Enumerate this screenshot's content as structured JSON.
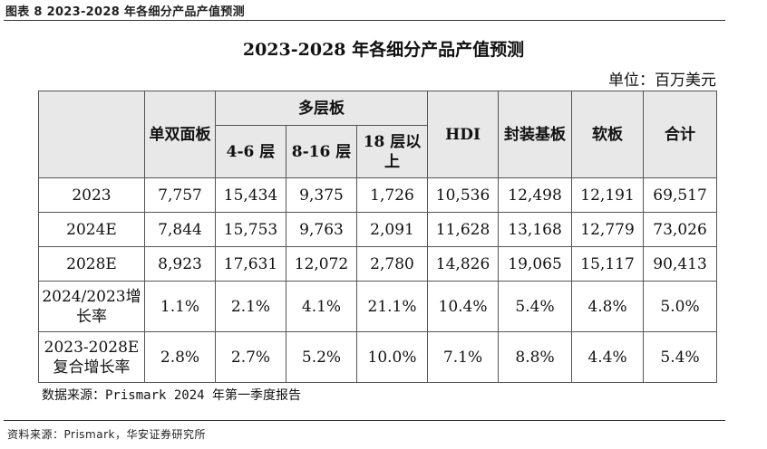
{
  "figure_caption": "图表 8 2023-2028 年各细分产品产值预测",
  "table_title": "2023-2028 年各细分产品产值预测",
  "unit": "单位：百万美元",
  "headers": {
    "single_double": "单双面板",
    "multilayer": "多层板",
    "ml_4_6": "4-6 层",
    "ml_8_16": "8-16 层",
    "ml_18_plus": "18 层以上",
    "hdi": "HDI",
    "substrate": "封装基板",
    "flex": "软板",
    "total": "合计"
  },
  "rows": [
    {
      "label": "2023",
      "values": [
        "7,757",
        "15,434",
        "9,375",
        "1,726",
        "10,536",
        "12,498",
        "12,191",
        "69,517"
      ]
    },
    {
      "label": "2024E",
      "values": [
        "7,844",
        "15,753",
        "9,763",
        "2,091",
        "11,628",
        "13,168",
        "12,779",
        "73,026"
      ]
    },
    {
      "label": "2028E",
      "values": [
        "8,923",
        "17,631",
        "12,072",
        "2,780",
        "14,826",
        "19,065",
        "15,117",
        "90,413"
      ]
    },
    {
      "label": "2024/2023增长率",
      "values": [
        "1.1%",
        "2.1%",
        "4.1%",
        "21.1%",
        "10.4%",
        "5.4%",
        "4.8%",
        "5.0%"
      ]
    },
    {
      "label": "2023-2028E复合增长率",
      "values": [
        "2.8%",
        "2.7%",
        "5.2%",
        "10.0%",
        "7.1%",
        "8.8%",
        "4.4%",
        "5.4%"
      ]
    }
  ],
  "data_note": "数据来源：Prismark 2024 年第一季度报告",
  "source": "资料来源：Prismark，华安证券研究所"
}
